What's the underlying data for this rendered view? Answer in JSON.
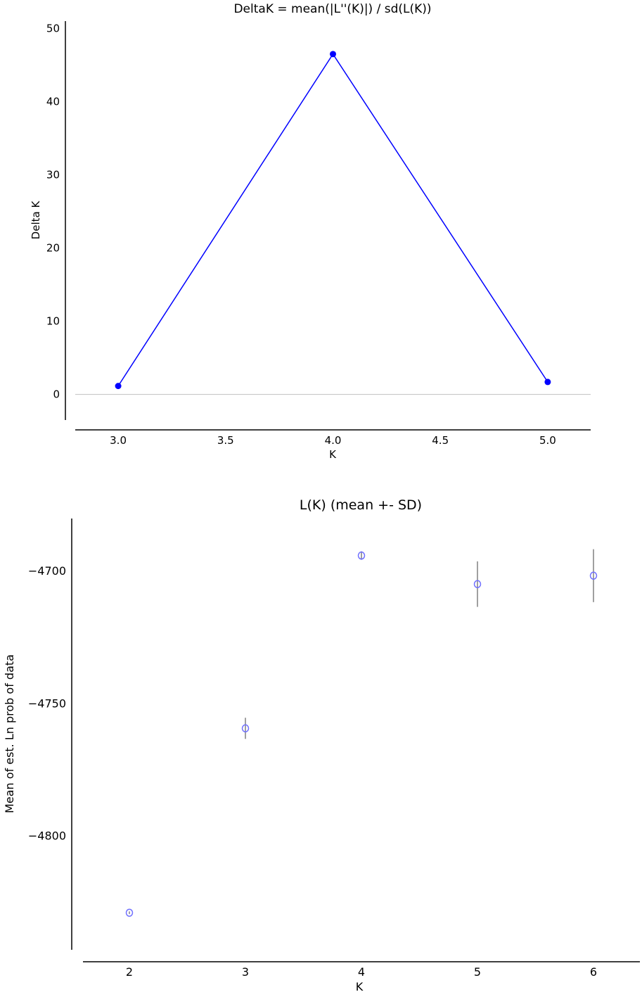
{
  "chart_data": [
    {
      "type": "line",
      "title": "DeltaK = mean(|L''(K)|) / sd(L(K))",
      "xlabel": "K",
      "ylabel": "Delta K",
      "x": [
        3.0,
        4.0,
        5.0
      ],
      "values": [
        1.15,
        46.5,
        1.7
      ],
      "xlim": [
        2.8,
        5.2
      ],
      "ylim": [
        -3.5,
        51
      ],
      "xticks": [
        "3.0",
        "3.5",
        "4.0",
        "4.5",
        "5.0"
      ],
      "xtick_values": [
        3.0,
        3.5,
        4.0,
        4.5,
        5.0
      ],
      "yticks": [
        "0",
        "10",
        "20",
        "30",
        "40",
        "50"
      ],
      "ytick_values": [
        0,
        10,
        20,
        30,
        40,
        50
      ],
      "zero_line": true,
      "color": "#0000ff"
    },
    {
      "type": "scatter",
      "title": "L(K) (mean +- SD)",
      "xlabel": "K",
      "ylabel": "Mean of est. Ln prob of data",
      "x": [
        2,
        3,
        4,
        5,
        6
      ],
      "values": [
        -4829.0,
        -4759.3,
        -4694.0,
        -4704.8,
        -4701.6
      ],
      "sd": [
        0.5,
        4.0,
        1.6,
        8.6,
        10.0
      ],
      "xlim": [
        1.6,
        6.4
      ],
      "ylim": [
        -4843,
        -4680
      ],
      "xticks": [
        "2",
        "3",
        "4",
        "5",
        "6"
      ],
      "xtick_values": [
        2,
        3,
        4,
        5,
        6
      ],
      "yticks": [
        "−4700",
        "−4750",
        "−4800"
      ],
      "ytick_values": [
        -4700,
        -4750,
        -4800
      ],
      "color": "#7070ff",
      "errorbar_color": "#808080"
    }
  ]
}
